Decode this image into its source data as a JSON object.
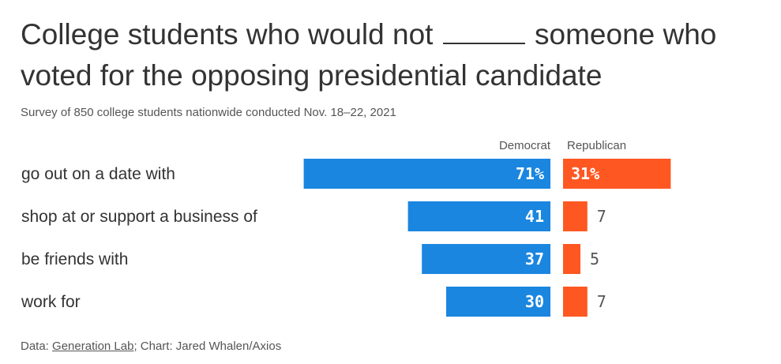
{
  "title_part1": "College students who would not",
  "title_part2": "someone who voted for the opposing presidential candidate",
  "subtitle": "Survey of 850 college students nationwide conducted Nov. 18–22, 2021",
  "source": {
    "prefix": "Data: ",
    "link": "Generation Lab",
    "suffix": "; Chart: Jared Whalen/Axios"
  },
  "colors": {
    "democrat": "#1a86e0",
    "republican": "#ff5722",
    "text": "#333333",
    "muted": "#555555"
  },
  "chart_data": {
    "type": "bar",
    "orientation": "horizontal",
    "categories": [
      "go out on a date with",
      "shop at or support a business of",
      "be friends with",
      "work for"
    ],
    "series": [
      {
        "name": "Democrat",
        "values": [
          71,
          41,
          37,
          30
        ],
        "labels": [
          "71%",
          "41",
          "37",
          "30"
        ]
      },
      {
        "name": "Republican",
        "values": [
          31,
          7,
          5,
          7
        ],
        "labels": [
          "31%",
          "7",
          "5",
          "7"
        ]
      }
    ],
    "unit": "%",
    "legend": "top"
  }
}
